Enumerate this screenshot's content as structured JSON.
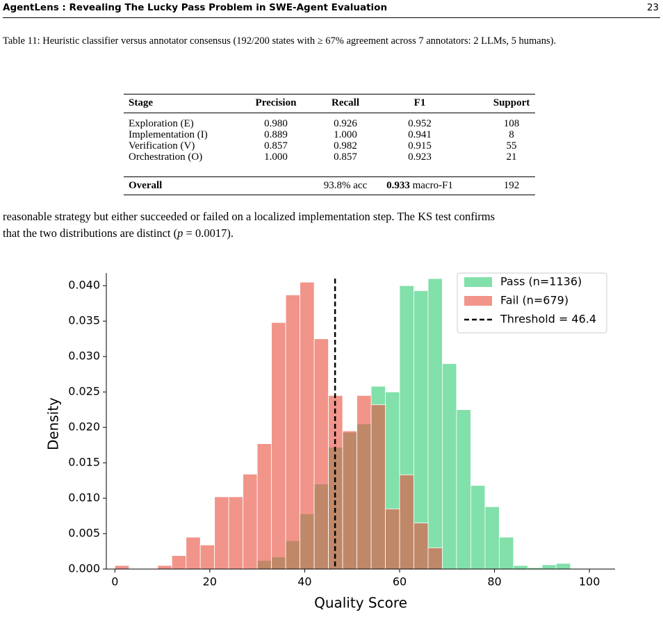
{
  "header": {
    "title": "AgentLens : Revealing The Lucky Pass Problem in SWE-Agent Evaluation",
    "page": "23"
  },
  "caption": {
    "label": "Table 11:",
    "text": "Heuristic classifier versus annotator consensus (192/200 states with ≥ 67% agreement across 7 annotators: 2 LLMs, 5 humans)."
  },
  "table": {
    "columns": [
      "Stage",
      "Precision",
      "Recall",
      "F1",
      "Support"
    ],
    "rows": [
      [
        "Exploration (E)",
        "0.980",
        "0.926",
        "0.952",
        "108"
      ],
      [
        "Implementation (I)",
        "0.889",
        "1.000",
        "0.941",
        "8"
      ],
      [
        "Verification (V)",
        "0.857",
        "0.982",
        "0.915",
        "55"
      ],
      [
        "Orchestration (O)",
        "1.000",
        "0.857",
        "0.923",
        "21"
      ]
    ],
    "overall": {
      "label": "Overall",
      "accuracy": "93.8% acc",
      "f1_bold": "0.933",
      "f1_suffix": "macro-F1",
      "support": "192"
    }
  },
  "paragraph": {
    "line_1": "reasonable strategy but either succeeded or failed on a localized implementation step. The KS test confirms",
    "line_2_start": "that the two distributions are distinct (",
    "symbol": "p",
    "line_2_end": " = 0.0017)."
  },
  "chart_data": {
    "type": "histogram",
    "x_label": "Quality Score",
    "y_label": "Density",
    "bins": [
      0,
      3,
      6,
      9,
      12,
      15,
      18,
      21,
      24,
      27,
      30,
      33,
      36,
      39,
      42,
      45,
      48,
      51,
      54,
      57,
      60,
      63,
      66,
      69,
      72,
      75,
      78,
      81,
      84,
      87,
      90,
      93,
      96
    ],
    "series": [
      {
        "name": "Pass (n=1136)",
        "color": "#2ecc71",
        "values": [
          0,
          0,
          0,
          0,
          0,
          0,
          0,
          0,
          0,
          0,
          0.0012,
          0.0017,
          0.004,
          0.0078,
          0.012,
          0.0172,
          0.0193,
          0.0205,
          0.0258,
          0.025,
          0.04,
          0.0393,
          0.041,
          0.029,
          0.0225,
          0.0118,
          0.0088,
          0.0045,
          0.0005,
          0.0002,
          0.0006,
          0.0008
        ]
      },
      {
        "name": "Fail (n=679)",
        "color": "#e74c3c",
        "values": [
          0.0005,
          0,
          0,
          0.0005,
          0.0019,
          0.0045,
          0.0034,
          0.0102,
          0.0102,
          0.0134,
          0.0177,
          0.0348,
          0.0387,
          0.0405,
          0.0325,
          0.0245,
          0.0195,
          0.0245,
          0.0232,
          0.0085,
          0.0133,
          0.0065,
          0.003,
          0,
          0,
          0,
          0,
          0,
          0,
          0,
          0,
          0
        ]
      }
    ],
    "threshold": {
      "value": 46.4,
      "label": "Threshold = 46.4",
      "color": "#000000"
    },
    "xlim": [
      -1.8,
      105.4
    ],
    "ylim": [
      0,
      0.041
    ],
    "xticks": [
      0,
      20,
      40,
      60,
      80,
      100
    ],
    "yticks": [
      {
        "value": 0,
        "label": "0.000"
      },
      {
        "value": 0.005,
        "label": "0.005"
      },
      {
        "value": 0.01,
        "label": "0.010"
      },
      {
        "value": 0.015,
        "label": "0.015"
      },
      {
        "value": 0.02,
        "label": "0.020"
      },
      {
        "value": 0.025,
        "label": "0.025"
      },
      {
        "value": 0.03,
        "label": "0.030"
      },
      {
        "value": 0.035,
        "label": "0.035"
      },
      {
        "value": 0.04,
        "label": "0.040"
      }
    ],
    "legend": "upper right",
    "opacity": 0.6
  }
}
